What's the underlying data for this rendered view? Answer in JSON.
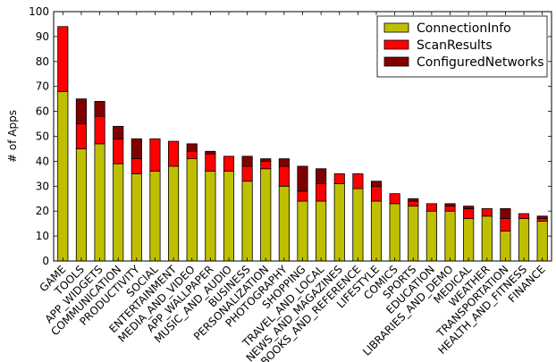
{
  "chart_data": {
    "type": "bar",
    "stacked": true,
    "title": "",
    "xlabel": "",
    "ylabel": "# of Apps",
    "ylim": [
      0,
      100
    ],
    "yticks": [
      0,
      10,
      20,
      30,
      40,
      50,
      60,
      70,
      80,
      90,
      100
    ],
    "grid": false,
    "legend_position": "top-right",
    "categories": [
      "GAME",
      "TOOLS",
      "APP_WIDGETS",
      "COMMUNICATION",
      "PRODUCTIVITY",
      "SOCIAL",
      "ENTERTAINMENT",
      "MEDIA_AND_VIDEO",
      "APP_WALLPAPER",
      "MUSIC_AND_AUDIO",
      "BUSINESS",
      "PERSONALIZATION",
      "PHOTOGRAPHY",
      "SHOPPING",
      "TRAVEL_AND_LOCAL",
      "NEWS_AND_MAGAZINES",
      "BOOKS_AND_REFERENCE",
      "LIFESTYLE",
      "COMICS",
      "SPORTS",
      "EDUCATION",
      "LIBRARIES_AND_DEMO",
      "MEDICAL",
      "WEATHER",
      "TRANSPORTATION",
      "HEALTH_AND_FITNESS",
      "FINANCE"
    ],
    "series": [
      {
        "name": "ConnectionInfo",
        "color": "#bfbf00",
        "values": [
          68,
          45,
          47,
          39,
          35,
          36,
          38,
          41,
          36,
          36,
          32,
          37,
          30,
          24,
          24,
          31,
          29,
          24,
          23,
          22,
          20,
          20,
          17,
          18,
          12,
          17,
          16
        ]
      },
      {
        "name": "ScanResults",
        "color": "#ff0000",
        "values": [
          26,
          10,
          11,
          10,
          6,
          13,
          10,
          3,
          7,
          6,
          6,
          3,
          8,
          4,
          7,
          4,
          6,
          6,
          4,
          2,
          3,
          2,
          4,
          3,
          5,
          2,
          1
        ]
      },
      {
        "name": "ConfiguredNetworks",
        "color": "#800000",
        "values": [
          0,
          10,
          6,
          5,
          8,
          0,
          0,
          3,
          1,
          0,
          4,
          1,
          3,
          10,
          6,
          0,
          0,
          2,
          0,
          1,
          0,
          1,
          1,
          0,
          4,
          0,
          1
        ]
      }
    ]
  }
}
